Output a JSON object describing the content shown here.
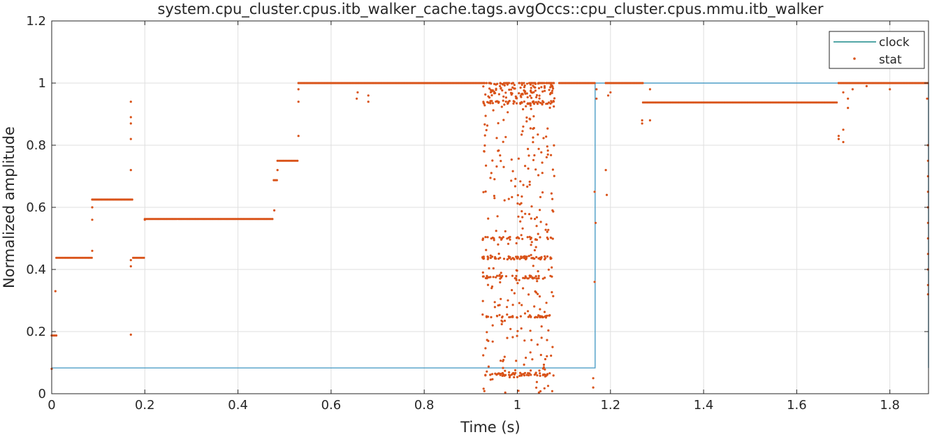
{
  "chart_data": {
    "type": "scatter",
    "title": "system.cpu_cluster.cpus.itb_walker_cache.tags.avgOccs::cpu_cluster.cpus.mmu.itb_walker",
    "xlabel": "Time (s)",
    "ylabel": "Normalized amplitude",
    "xlim": [
      0,
      1.883
    ],
    "ylim": [
      0,
      1.2
    ],
    "xticks": [
      0,
      0.2,
      0.4,
      0.6,
      0.8,
      1,
      1.2,
      1.4,
      1.6,
      1.8
    ],
    "xtick_labels": [
      "0",
      "0.2",
      "0.4",
      "0.6",
      "0.8",
      "1",
      "1.2",
      "1.4",
      "1.6",
      "1.8"
    ],
    "yticks": [
      0,
      0.2,
      0.4,
      0.6,
      0.8,
      1,
      1.2
    ],
    "ytick_labels": [
      "0",
      "0.2",
      "0.4",
      "0.6",
      "0.8",
      "1",
      "1.2"
    ],
    "grid": true,
    "legend": {
      "placement": "top-right",
      "entries": [
        "clock",
        "stat"
      ]
    },
    "colors": {
      "clock": "#4d9ec7",
      "stat": "#d95319",
      "legend_clock": "#1a8a8a"
    },
    "series": [
      {
        "name": "clock",
        "type": "step-line",
        "x": [
          0,
          1.167,
          1.167,
          1.883,
          1.883
        ],
        "y": [
          0.083,
          0.083,
          1.0,
          1.0,
          0.083
        ]
      },
      {
        "name": "stat",
        "type": "markers",
        "plateaus": [
          {
            "x": [
              0.0,
              0.01
            ],
            "y": 0.1875
          },
          {
            "x": [
              0.01,
              0.087
            ],
            "y": 0.4375
          },
          {
            "x": [
              0.087,
              0.175
            ],
            "y": 0.625
          },
          {
            "x": [
              0.175,
              0.2
            ],
            "y": 0.4375
          },
          {
            "x": [
              0.2,
              0.477
            ],
            "y": 0.5625
          },
          {
            "x": [
              0.477,
              0.485
            ],
            "y": 0.6875
          },
          {
            "x": [
              0.485,
              0.53
            ],
            "y": 0.75
          },
          {
            "x": [
              0.53,
              0.93
            ],
            "y": 1.0
          },
          {
            "x": [
              1.09,
              1.167
            ],
            "y": 1.0
          },
          {
            "x": [
              1.19,
              1.27
            ],
            "y": 1.0
          },
          {
            "x": [
              1.27,
              1.688
            ],
            "y": 0.9375
          },
          {
            "x": [
              1.69,
              1.883
            ],
            "y": 1.0
          }
        ],
        "points": [
          [
            0.0,
            0.08
          ],
          [
            0.008,
            0.33
          ],
          [
            0.087,
            0.46
          ],
          [
            0.087,
            0.6
          ],
          [
            0.087,
            0.56
          ],
          [
            0.17,
            0.72
          ],
          [
            0.17,
            0.82
          ],
          [
            0.17,
            0.87
          ],
          [
            0.17,
            0.89
          ],
          [
            0.17,
            0.94
          ],
          [
            0.17,
            0.43
          ],
          [
            0.17,
            0.41
          ],
          [
            0.17,
            0.19
          ],
          [
            0.2,
            0.56
          ],
          [
            0.478,
            0.59
          ],
          [
            0.485,
            0.72
          ],
          [
            0.53,
            0.83
          ],
          [
            0.53,
            0.94
          ],
          [
            0.53,
            0.98
          ],
          [
            0.655,
            0.95
          ],
          [
            0.657,
            0.97
          ],
          [
            0.68,
            0.94
          ],
          [
            0.68,
            0.96
          ],
          [
            1.163,
            0.05
          ],
          [
            1.163,
            0.02
          ],
          [
            1.166,
            0.36
          ],
          [
            1.166,
            0.65
          ],
          [
            1.168,
            0.55
          ],
          [
            1.17,
            0.95
          ],
          [
            1.17,
            0.98
          ],
          [
            1.19,
            0.72
          ],
          [
            1.192,
            0.64
          ],
          [
            1.195,
            0.96
          ],
          [
            1.2,
            0.97
          ],
          [
            1.268,
            0.88
          ],
          [
            1.268,
            0.87
          ],
          [
            1.285,
            0.98
          ],
          [
            1.285,
            0.88
          ],
          [
            1.69,
            0.82
          ],
          [
            1.69,
            0.83
          ],
          [
            1.7,
            0.85
          ],
          [
            1.7,
            0.81
          ],
          [
            1.7,
            0.97
          ],
          [
            1.71,
            0.92
          ],
          [
            1.71,
            0.95
          ],
          [
            1.72,
            0.98
          ],
          [
            1.75,
            0.99
          ],
          [
            1.8,
            0.98
          ],
          [
            1.88,
            0.95
          ],
          [
            1.882,
            0.8
          ],
          [
            1.882,
            0.75
          ],
          [
            1.882,
            0.7
          ],
          [
            1.882,
            0.65
          ],
          [
            1.882,
            0.6
          ],
          [
            1.882,
            0.55
          ],
          [
            1.882,
            0.5
          ],
          [
            1.882,
            0.45
          ],
          [
            1.882,
            0.4
          ],
          [
            1.882,
            0.35
          ],
          [
            1.882,
            0.32
          ]
        ],
        "burst": {
          "x": [
            0.925,
            1.08
          ],
          "y": [
            0.0,
            1.0
          ],
          "count": 700,
          "levels": [
            1.0,
            0.9375,
            0.5,
            0.4375,
            0.375,
            0.25,
            0.0625
          ]
        }
      }
    ]
  }
}
